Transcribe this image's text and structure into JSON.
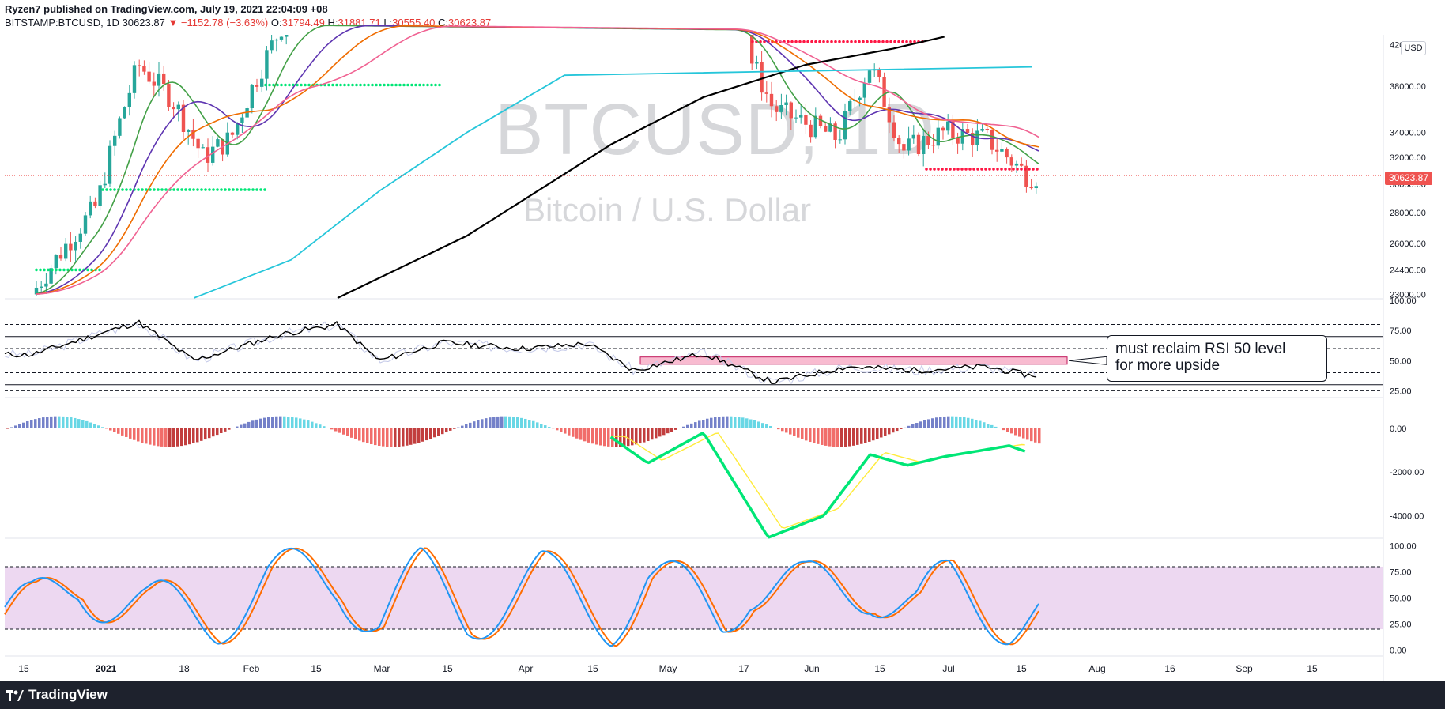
{
  "header": {
    "published": "Ryzen7 published on TradingView.com, July 19, 2021 22:04:09 +08",
    "symbol": "BITSTAMP:BTCUSD, 1D",
    "price": "30623.87",
    "change": "▼ −1152.78 (−3.63%)",
    "o_label": "O:",
    "o_value": "31794.49",
    "h_label": "H:",
    "h_value": "31881.71",
    "l_label": "L:",
    "l_value": "30555.40",
    "c_label": "C:",
    "c_value": "30623.87"
  },
  "watermark": {
    "ticker": "BTCUSD, 1D",
    "name": "Bitcoin / U.S. Dollar"
  },
  "annotation": {
    "line1": "must reclaim RSI 50 level",
    "line2": "for more upside"
  },
  "footer": {
    "brand": "TradingView"
  },
  "price_axis": {
    "currency": "USD",
    "last_price": "30623.87"
  },
  "colors": {
    "up": "#26a69a",
    "down": "#ef5350",
    "ma200": "#000000",
    "ma_cyan": "#26c6da",
    "ma_pink": "#f06292",
    "ma_orange": "#ef6c00",
    "ma_purple": "#5e35b1",
    "ma_green": "#43a047",
    "rsi": "#000000",
    "stoch_k": "#2196f3",
    "stoch_d": "#ff6d00",
    "stoch_band": "#e1bee7",
    "macd_bull": "#00e676",
    "macd_bear": "#ff5252",
    "macd_signal": "#ffeb3b"
  },
  "chart_data": [
    {
      "type": "line",
      "title": "BITSTAMP:BTCUSD, 1D",
      "y_ticks": [
        23000,
        24400,
        26000,
        28000,
        30000,
        32000,
        34000,
        38000,
        42000
      ],
      "y_tick_labels": [
        "23000.00",
        "24400.00",
        "26000.00",
        "28000.00",
        "30000.00",
        "32000.00",
        "34000.00",
        "38000.00",
        "42000.00"
      ],
      "ylim": [
        22800,
        43000
      ],
      "x_tick_labels": [
        "15",
        "2021",
        "18",
        "Feb",
        "15",
        "Mar",
        "15",
        "Apr",
        "15",
        "May",
        "17",
        "Jun",
        "15",
        "Jul",
        "15",
        "Aug",
        "16",
        "Sep",
        "15"
      ],
      "series": [
        {
          "name": "",
          "style": "ma200",
          "x": [
            "2021-02-20",
            "2021-03-20",
            "2021-04-20",
            "2021-05-10",
            "2021-06-01",
            "2021-06-20",
            "2021-07-01"
          ],
          "values": [
            22800,
            26500,
            33000,
            37000,
            40000,
            41600,
            42800
          ]
        },
        {
          "name": "",
          "style": "ma_cyan",
          "x": [
            "2021-01-20",
            "2021-02-10",
            "2021-03-01",
            "2021-03-20",
            "2021-04-10",
            "2021-07-20"
          ],
          "values": [
            22800,
            25000,
            29500,
            34000,
            39000,
            39800
          ]
        },
        {
          "name": "",
          "style": "close",
          "x": [
            "2020-12-16",
            "2020-12-30",
            "2021-01-08",
            "2021-01-15",
            "2021-01-22",
            "2021-01-28",
            "2021-02-08",
            "2021-05-17",
            "2021-05-25",
            "2021-06-08",
            "2021-06-15",
            "2021-06-22",
            "2021-07-01",
            "2021-07-10",
            "2021-07-19"
          ],
          "values": [
            23000,
            28500,
            40000,
            37000,
            32000,
            33500,
            44000,
            43500,
            36000,
            33500,
            40000,
            32500,
            34000,
            33500,
            30623.87
          ]
        }
      ]
    },
    {
      "type": "line",
      "title": "",
      "y_ticks": [
        25,
        50,
        75,
        100
      ],
      "y_tick_labels": [
        "25.00",
        "50.00",
        "75.00",
        "100.00"
      ],
      "ylim": [
        20,
        100
      ],
      "series": [
        {
          "name": "",
          "style": "rsi",
          "x": [
            "2020-12-16",
            "2021-01-08",
            "2021-01-20",
            "2021-02-08",
            "2021-02-20",
            "2021-03-01",
            "2021-03-15",
            "2021-04-01",
            "2021-04-15",
            "2021-04-25",
            "2021-05-10",
            "2021-05-25",
            "2021-06-10",
            "2021-06-25",
            "2021-07-10",
            "2021-07-19"
          ],
          "values": [
            55,
            82,
            50,
            72,
            80,
            50,
            65,
            60,
            64,
            42,
            56,
            32,
            45,
            42,
            45,
            38
          ]
        }
      ]
    },
    {
      "type": "bar",
      "title": "",
      "y_ticks": [
        0,
        -2000,
        -4000
      ],
      "y_tick_labels": [
        "0.00",
        "-2000.00",
        "-4000.00"
      ],
      "ylim": [
        -5000,
        500
      ],
      "series": [
        {
          "name": "",
          "style": "macd",
          "x": [
            "2021-04-20",
            "2021-04-28",
            "2021-05-10",
            "2021-05-24",
            "2021-06-05",
            "2021-06-15",
            "2021-06-23",
            "2021-07-01",
            "2021-07-15",
            "2021-07-19"
          ],
          "values": [
            -400,
            -1600,
            -200,
            -5000,
            -4000,
            -1200,
            -1700,
            -1300,
            -800,
            -1100
          ]
        }
      ]
    },
    {
      "type": "line",
      "title": "",
      "y_ticks": [
        0,
        25,
        50,
        75,
        100
      ],
      "y_tick_labels": [
        "0.00",
        "25.00",
        "50.00",
        "75.00",
        "100.00"
      ],
      "ylim": [
        -5,
        105
      ],
      "series": [
        {
          "name": "",
          "style": "stoch_k",
          "x": [
            "2020-12-16",
            "2020-12-26",
            "2021-01-10",
            "2021-01-25",
            "2021-02-05",
            "2021-02-20",
            "2021-03-01",
            "2021-03-10",
            "2021-03-20",
            "2021-04-05",
            "2021-04-20",
            "2021-04-28",
            "2021-05-14",
            "2021-05-20",
            "2021-06-01",
            "2021-06-15",
            "2021-06-25",
            "2021-07-02",
            "2021-07-15",
            "2021-07-19"
          ],
          "values": [
            5,
            100,
            10,
            5,
            95,
            100,
            5,
            100,
            10,
            95,
            5,
            95,
            5,
            100,
            60,
            95,
            15,
            80,
            5,
            10
          ]
        }
      ]
    }
  ]
}
